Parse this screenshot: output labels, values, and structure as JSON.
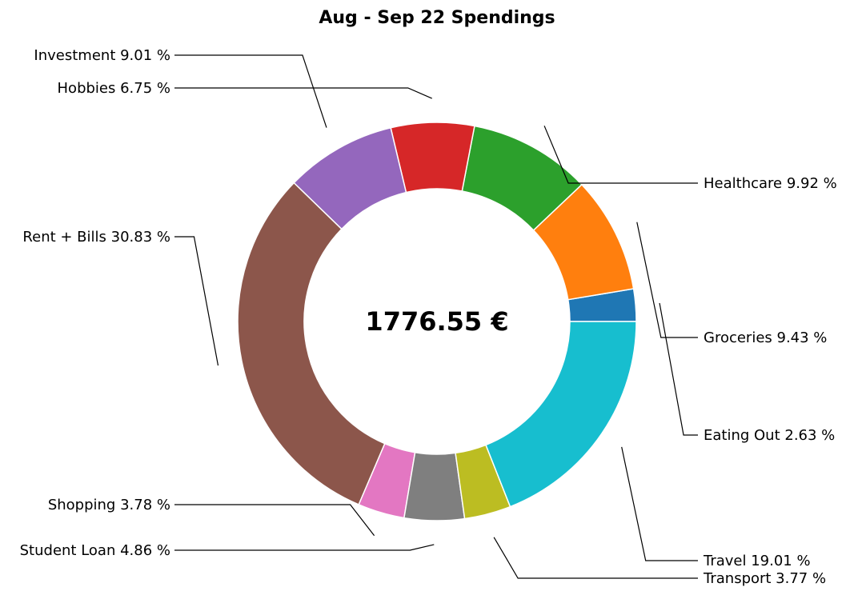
{
  "chart_data": {
    "type": "pie",
    "donut": true,
    "title": "Aug - Sep 22 Spendings",
    "center_label": "1776.55 €",
    "start_angle_deg": 0,
    "direction": "counterclockwise",
    "slices": [
      {
        "label": "Eating Out 2.63 %",
        "category": "Eating Out",
        "value": 2.63,
        "color": "#1f77b4"
      },
      {
        "label": "Groceries 9.43 %",
        "category": "Groceries",
        "value": 9.43,
        "color": "#ff7f0e"
      },
      {
        "label": "Healthcare 9.92 %",
        "category": "Healthcare",
        "value": 9.92,
        "color": "#2ca02c"
      },
      {
        "label": "Hobbies 6.75 %",
        "category": "Hobbies",
        "value": 6.75,
        "color": "#d62728"
      },
      {
        "label": "Investment 9.01 %",
        "category": "Investment",
        "value": 9.01,
        "color": "#9467bd"
      },
      {
        "label": "Rent + Bills 30.83 %",
        "category": "Rent + Bills",
        "value": 30.83,
        "color": "#8c564b"
      },
      {
        "label": "Shopping 3.78 %",
        "category": "Shopping",
        "value": 3.78,
        "color": "#e377c2"
      },
      {
        "label": "Student Loan 4.86 %",
        "category": "Student Loan",
        "value": 4.86,
        "color": "#7f7f7f"
      },
      {
        "label": "Transport 3.77 %",
        "category": "Transport",
        "value": 3.77,
        "color": "#bcbd22"
      },
      {
        "label": "Travel 19.01 %",
        "category": "Travel",
        "value": 19.01,
        "color": "#17becf"
      }
    ]
  }
}
